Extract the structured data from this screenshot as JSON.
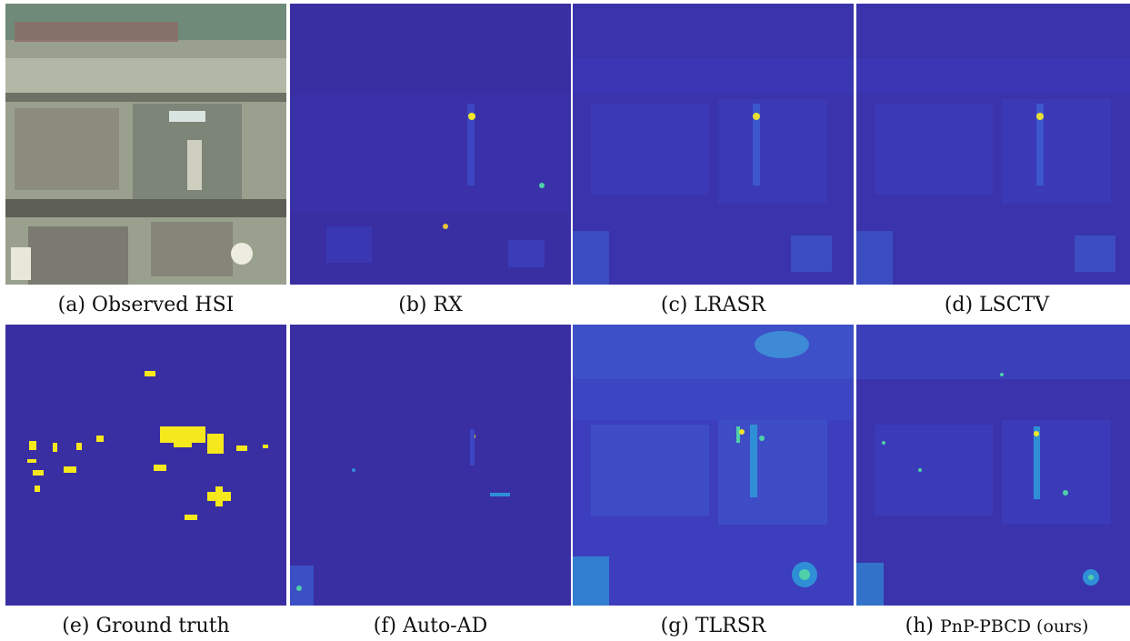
{
  "figure": {
    "panels": [
      {
        "id": "a",
        "caption": "(a) Observed HSI"
      },
      {
        "id": "b",
        "caption": "(b) RX"
      },
      {
        "id": "c",
        "caption": "(c) LRASR"
      },
      {
        "id": "d",
        "caption": "(d) LSCTV"
      },
      {
        "id": "e",
        "caption": "(e) Ground truth"
      },
      {
        "id": "f",
        "caption": "(f) Auto-AD"
      },
      {
        "id": "g",
        "caption": "(g) TLRSR"
      },
      {
        "id": "h",
        "caption_prefix": "(h)",
        "caption_method": "PnP-PBCD (ours)"
      }
    ],
    "colors": {
      "map_background": "#3a2ea3",
      "map_low": "#3c3fbf",
      "map_mid": "#2f8fd6",
      "map_high": "#4fd0a8",
      "map_peak": "#f0e62a",
      "ground_truth_anomaly": "#f5e81c"
    }
  }
}
